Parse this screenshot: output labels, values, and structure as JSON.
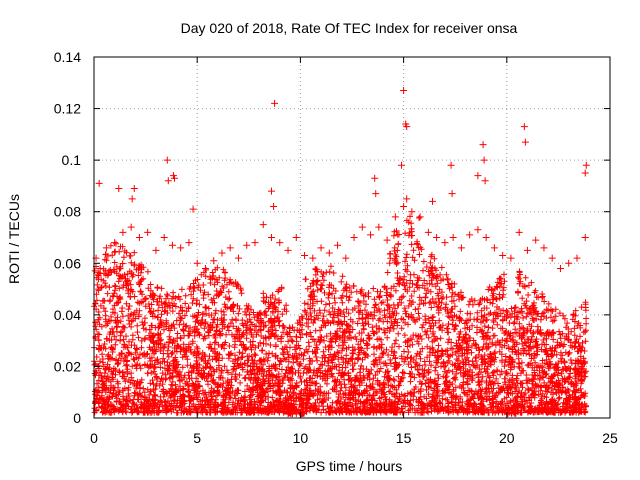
{
  "chart_data": {
    "type": "scatter",
    "title": "Day 020 of 2018, Rate Of TEC Index for receiver onsa",
    "xlabel": "GPS time / hours",
    "ylabel": "ROTI / TECUs",
    "xlim": [
      0,
      25
    ],
    "ylim": [
      0,
      0.14
    ],
    "x_ticks": [
      0,
      5,
      10,
      15,
      20,
      25
    ],
    "x_tick_labels": [
      "0",
      "5",
      "10",
      "15",
      "20",
      "25"
    ],
    "y_ticks": [
      0,
      0.02,
      0.04,
      0.06,
      0.08,
      0.1,
      0.12,
      0.14
    ],
    "y_tick_labels": [
      "0",
      "0.02",
      "0.04",
      "0.06",
      "0.08",
      "0.1",
      "0.12",
      "0.14"
    ],
    "grid": true,
    "marker": "+",
    "series": [
      {
        "name": "ROTI",
        "color": "#ff0000",
        "x": [
          0.25,
          1.2,
          1.85,
          1.95,
          3.55,
          3.6,
          3.85,
          3.9,
          4.8,
          8.6,
          8.75,
          8.7,
          13.6,
          13.65,
          14.9,
          15.0,
          15.1,
          15.15,
          15.15,
          16.4,
          17.3,
          17.35,
          18.6,
          18.85,
          18.9,
          18.95,
          20.85,
          20.9,
          23.85,
          23.8,
          0.1,
          0.3,
          0.6,
          1.0,
          1.4,
          1.8,
          2.2,
          2.6,
          3.0,
          3.4,
          3.8,
          4.2,
          4.6,
          5.0,
          5.4,
          5.8,
          6.2,
          6.6,
          7.0,
          7.4,
          7.8,
          8.2,
          8.6,
          9.0,
          9.4,
          9.8,
          10.2,
          10.6,
          11.0,
          11.4,
          11.8,
          12.2,
          12.6,
          13.0,
          13.4,
          13.8,
          14.2,
          14.6,
          15.0,
          15.4,
          15.8,
          16.2,
          16.6,
          17.0,
          17.4,
          17.8,
          18.2,
          18.6,
          19.0,
          19.4,
          19.8,
          20.2,
          20.6,
          21.0,
          21.4,
          21.8,
          22.2,
          22.6,
          23.0,
          23.4,
          23.8
        ],
        "y": [
          0.091,
          0.089,
          0.085,
          0.089,
          0.1,
          0.092,
          0.094,
          0.093,
          0.081,
          0.088,
          0.122,
          0.082,
          0.093,
          0.087,
          0.098,
          0.127,
          0.114,
          0.113,
          0.085,
          0.084,
          0.098,
          0.087,
          0.094,
          0.106,
          0.1,
          0.092,
          0.113,
          0.107,
          0.098,
          0.095,
          0.062,
          0.058,
          0.066,
          0.068,
          0.072,
          0.074,
          0.07,
          0.072,
          0.065,
          0.07,
          0.067,
          0.066,
          0.068,
          0.06,
          0.058,
          0.061,
          0.064,
          0.066,
          0.062,
          0.067,
          0.068,
          0.075,
          0.07,
          0.068,
          0.065,
          0.07,
          0.063,
          0.062,
          0.066,
          0.064,
          0.067,
          0.062,
          0.07,
          0.074,
          0.071,
          0.074,
          0.069,
          0.078,
          0.082,
          0.08,
          0.078,
          0.072,
          0.07,
          0.068,
          0.07,
          0.066,
          0.071,
          0.073,
          0.07,
          0.066,
          0.063,
          0.062,
          0.072,
          0.065,
          0.069,
          0.066,
          0.062,
          0.058,
          0.06,
          0.062,
          0.07
        ]
      }
    ]
  }
}
